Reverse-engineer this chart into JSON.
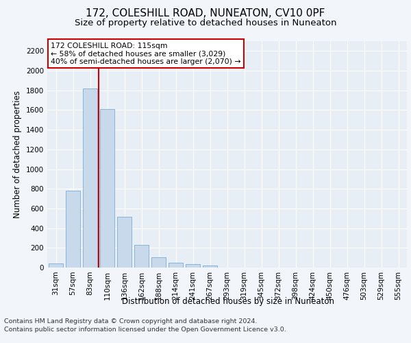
{
  "title": "172, COLESHILL ROAD, NUNEATON, CV10 0PF",
  "subtitle": "Size of property relative to detached houses in Nuneaton",
  "xlabel": "Distribution of detached houses by size in Nuneaton",
  "ylabel": "Number of detached properties",
  "categories": [
    "31sqm",
    "57sqm",
    "83sqm",
    "110sqm",
    "136sqm",
    "162sqm",
    "188sqm",
    "214sqm",
    "241sqm",
    "267sqm",
    "293sqm",
    "319sqm",
    "345sqm",
    "372sqm",
    "398sqm",
    "424sqm",
    "450sqm",
    "476sqm",
    "503sqm",
    "529sqm",
    "555sqm"
  ],
  "values": [
    45,
    780,
    1820,
    1610,
    515,
    230,
    105,
    50,
    35,
    20,
    0,
    0,
    0,
    0,
    0,
    0,
    0,
    0,
    0,
    0,
    0
  ],
  "bar_color": "#c9d9ec",
  "bar_edgecolor": "#7aadd4",
  "vline_color": "#cc0000",
  "vline_x_index": 3,
  "annotation_text": "172 COLESHILL ROAD: 115sqm\n← 58% of detached houses are smaller (3,029)\n40% of semi-detached houses are larger (2,070) →",
  "annotation_box_facecolor": "#ffffff",
  "annotation_box_edgecolor": "#cc0000",
  "ylim": [
    0,
    2300
  ],
  "yticks": [
    0,
    200,
    400,
    600,
    800,
    1000,
    1200,
    1400,
    1600,
    1800,
    2000,
    2200
  ],
  "fig_background_color": "#f2f5fa",
  "plot_background_color": "#e8eef5",
  "grid_color": "#ffffff",
  "footer_line1": "Contains HM Land Registry data © Crown copyright and database right 2024.",
  "footer_line2": "Contains public sector information licensed under the Open Government Licence v3.0.",
  "title_fontsize": 11,
  "subtitle_fontsize": 9.5,
  "axis_label_fontsize": 8.5,
  "tick_fontsize": 7.5,
  "annotation_fontsize": 7.8,
  "footer_fontsize": 6.8
}
